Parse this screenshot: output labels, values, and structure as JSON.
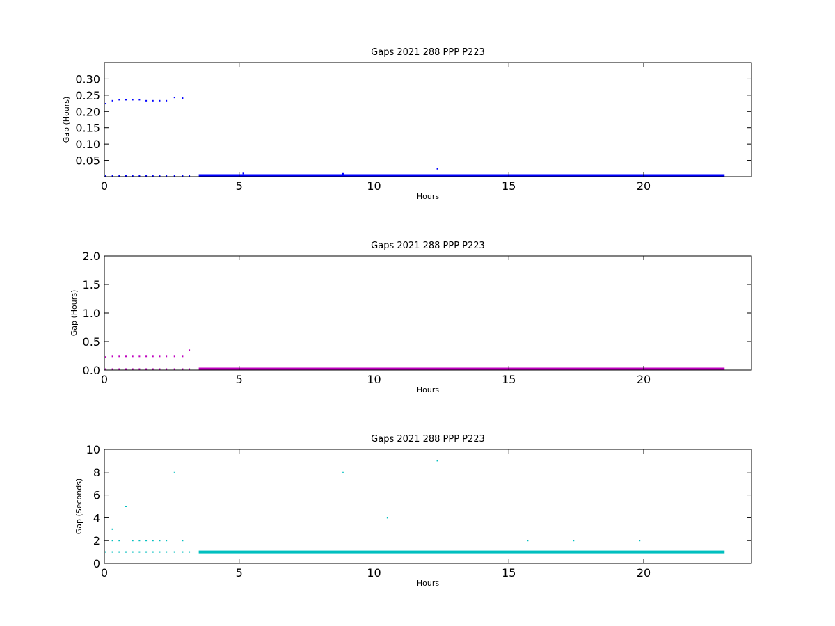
{
  "chart_data": [
    {
      "type": "scatter",
      "title": "Gaps 2021 288 PPP  P223",
      "xlabel": "Hours",
      "ylabel": "Gap (Hours)",
      "xlim": [
        0,
        24
      ],
      "ylim": [
        0,
        0.35
      ],
      "xticks": [
        0,
        5,
        10,
        15,
        20
      ],
      "yticks": [
        0.05,
        0.1,
        0.15,
        0.2,
        0.25,
        0.3
      ],
      "ytick_labels": [
        "0.05",
        "0.10",
        "0.15",
        "0.20",
        "0.25",
        "0.30"
      ],
      "color": "#0000ff",
      "grid": false,
      "dense_band": {
        "x_start": 3.5,
        "x_end": 23.0,
        "y": 0.0003
      },
      "points": [
        {
          "x": 0.05,
          "y": 0.224
        },
        {
          "x": 0.3,
          "y": 0.233
        },
        {
          "x": 0.55,
          "y": 0.236
        },
        {
          "x": 0.8,
          "y": 0.236
        },
        {
          "x": 1.05,
          "y": 0.236
        },
        {
          "x": 1.3,
          "y": 0.236
        },
        {
          "x": 1.55,
          "y": 0.233
        },
        {
          "x": 1.8,
          "y": 0.233
        },
        {
          "x": 2.05,
          "y": 0.233
        },
        {
          "x": 2.3,
          "y": 0.233
        },
        {
          "x": 2.6,
          "y": 0.243
        },
        {
          "x": 2.9,
          "y": 0.241
        },
        {
          "x": 0.05,
          "y": 0.003
        },
        {
          "x": 0.3,
          "y": 0.003
        },
        {
          "x": 0.55,
          "y": 0.003
        },
        {
          "x": 0.8,
          "y": 0.003
        },
        {
          "x": 1.05,
          "y": 0.003
        },
        {
          "x": 1.3,
          "y": 0.003
        },
        {
          "x": 1.55,
          "y": 0.003
        },
        {
          "x": 1.8,
          "y": 0.003
        },
        {
          "x": 2.05,
          "y": 0.003
        },
        {
          "x": 2.3,
          "y": 0.003
        },
        {
          "x": 2.6,
          "y": 0.003
        },
        {
          "x": 2.9,
          "y": 0.003
        },
        {
          "x": 3.15,
          "y": 0.003
        },
        {
          "x": 5.15,
          "y": 0.01
        },
        {
          "x": 8.85,
          "y": 0.009
        },
        {
          "x": 12.35,
          "y": 0.024
        },
        {
          "x": 22.65,
          "y": 0.005
        }
      ]
    },
    {
      "type": "scatter",
      "title": "Gaps 2021 288 PPP  P223",
      "xlabel": "Hours",
      "ylabel": "Gap (Hours)",
      "xlim": [
        0,
        24
      ],
      "ylim": [
        0,
        2.0
      ],
      "xticks": [
        0,
        5,
        10,
        15,
        20
      ],
      "yticks": [
        0.0,
        0.5,
        1.0,
        1.5,
        2.0
      ],
      "ytick_labels": [
        "0.0",
        "0.5",
        "1.0",
        "1.5",
        "2.0"
      ],
      "color": "#bf00bf",
      "grid": false,
      "dense_band": {
        "x_start": 3.5,
        "x_end": 23.0,
        "y": 0.0
      },
      "points": [
        {
          "x": 0.05,
          "y": 0.23
        },
        {
          "x": 0.3,
          "y": 0.24
        },
        {
          "x": 0.55,
          "y": 0.24
        },
        {
          "x": 0.8,
          "y": 0.24
        },
        {
          "x": 1.05,
          "y": 0.24
        },
        {
          "x": 1.3,
          "y": 0.24
        },
        {
          "x": 1.55,
          "y": 0.24
        },
        {
          "x": 1.8,
          "y": 0.24
        },
        {
          "x": 2.05,
          "y": 0.24
        },
        {
          "x": 2.3,
          "y": 0.24
        },
        {
          "x": 2.6,
          "y": 0.24
        },
        {
          "x": 2.9,
          "y": 0.24
        },
        {
          "x": 3.15,
          "y": 0.35
        },
        {
          "x": 0.05,
          "y": 0.003
        },
        {
          "x": 0.3,
          "y": 0.003
        },
        {
          "x": 0.55,
          "y": 0.003
        },
        {
          "x": 0.8,
          "y": 0.003
        },
        {
          "x": 1.05,
          "y": 0.003
        },
        {
          "x": 1.3,
          "y": 0.003
        },
        {
          "x": 1.55,
          "y": 0.003
        },
        {
          "x": 1.8,
          "y": 0.003
        },
        {
          "x": 2.05,
          "y": 0.003
        },
        {
          "x": 2.3,
          "y": 0.003
        },
        {
          "x": 2.6,
          "y": 0.003
        },
        {
          "x": 2.9,
          "y": 0.003
        },
        {
          "x": 3.15,
          "y": 0.003
        },
        {
          "x": 12.35,
          "y": 0.025
        }
      ]
    },
    {
      "type": "scatter",
      "title": "Gaps 2021 288 PPP  P223",
      "xlabel": "Hours",
      "ylabel": "Gap (Seconds)",
      "xlim": [
        0,
        24
      ],
      "ylim": [
        0,
        10
      ],
      "xticks": [
        0,
        5,
        10,
        15,
        20
      ],
      "yticks": [
        0,
        2,
        4,
        6,
        8,
        10
      ],
      "ytick_labels": [
        "0",
        "2",
        "4",
        "6",
        "8",
        "10"
      ],
      "color": "#00bfbf",
      "grid": false,
      "dense_band": {
        "x_start": 3.5,
        "x_end": 23.0,
        "y": 1.0
      },
      "points": [
        {
          "x": 0.05,
          "y": 1
        },
        {
          "x": 0.3,
          "y": 1
        },
        {
          "x": 0.55,
          "y": 1
        },
        {
          "x": 0.8,
          "y": 1
        },
        {
          "x": 1.05,
          "y": 1
        },
        {
          "x": 1.3,
          "y": 1
        },
        {
          "x": 1.55,
          "y": 1
        },
        {
          "x": 1.8,
          "y": 1
        },
        {
          "x": 2.05,
          "y": 1
        },
        {
          "x": 2.3,
          "y": 1
        },
        {
          "x": 2.6,
          "y": 1
        },
        {
          "x": 2.9,
          "y": 1
        },
        {
          "x": 3.15,
          "y": 1
        },
        {
          "x": 0.3,
          "y": 2
        },
        {
          "x": 0.55,
          "y": 2
        },
        {
          "x": 1.05,
          "y": 2
        },
        {
          "x": 1.3,
          "y": 2
        },
        {
          "x": 1.55,
          "y": 2
        },
        {
          "x": 1.8,
          "y": 2
        },
        {
          "x": 2.05,
          "y": 2
        },
        {
          "x": 2.3,
          "y": 2
        },
        {
          "x": 2.9,
          "y": 2
        },
        {
          "x": 0.3,
          "y": 3
        },
        {
          "x": 0.8,
          "y": 5
        },
        {
          "x": 2.6,
          "y": 8
        },
        {
          "x": 8.85,
          "y": 8
        },
        {
          "x": 10.5,
          "y": 4
        },
        {
          "x": 12.35,
          "y": 9
        },
        {
          "x": 15.7,
          "y": 2
        },
        {
          "x": 17.4,
          "y": 2
        },
        {
          "x": 19.85,
          "y": 2
        }
      ]
    }
  ]
}
